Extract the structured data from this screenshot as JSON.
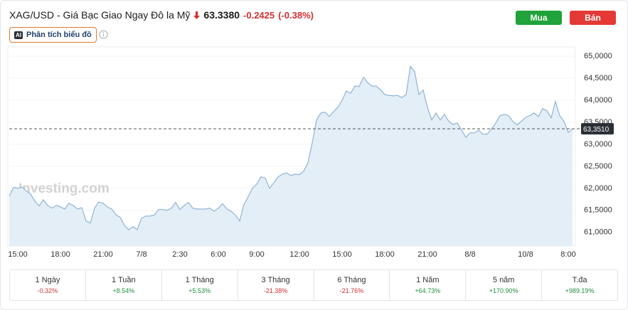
{
  "header": {
    "title": "XAG/USD - Giá Bạc Giao Ngay Đô la Mỹ",
    "price": "63.3380",
    "change": "-0.2425",
    "change_percent": "(-0.38%)",
    "buy": "Mua",
    "sell": "Bán",
    "ai_badge": "AI",
    "analysis": "Phân tích biểu đồ"
  },
  "chart_data": {
    "type": "area",
    "color": "#8fb4d6",
    "fill": "#e4eef7",
    "watermark": "Investing.com",
    "categories": [
      null,
      null,
      "15:00",
      null,
      null,
      null,
      null,
      null,
      null,
      null,
      null,
      null,
      "18:00",
      null,
      null,
      null,
      null,
      null,
      null,
      null,
      null,
      null,
      "21:00",
      null,
      null,
      null,
      null,
      null,
      null,
      null,
      null,
      "7/8",
      null,
      null,
      null,
      null,
      null,
      null,
      null,
      null,
      "2:30",
      null,
      null,
      null,
      null,
      null,
      null,
      null,
      null,
      "6:00",
      null,
      null,
      null,
      null,
      null,
      null,
      null,
      null,
      "9:00",
      null,
      null,
      null,
      null,
      null,
      null,
      null,
      null,
      null,
      "12:00",
      null,
      null,
      null,
      null,
      null,
      null,
      null,
      null,
      null,
      "15:00",
      null,
      null,
      null,
      null,
      null,
      null,
      null,
      null,
      null,
      "18:00",
      null,
      null,
      null,
      null,
      null,
      null,
      null,
      null,
      null,
      "21:00",
      null,
      null,
      null,
      null,
      null,
      null,
      null,
      null,
      null,
      "8/8",
      null,
      null,
      null,
      null,
      null,
      null,
      null,
      null,
      null,
      null,
      null,
      null,
      "10/8",
      null,
      null,
      null,
      null,
      null,
      null,
      null,
      null,
      null,
      "8:00",
      null
    ],
    "values": [
      61.82,
      62.02,
      62.0,
      62.03,
      61.94,
      61.87,
      61.71,
      61.6,
      61.74,
      61.61,
      61.55,
      61.61,
      61.58,
      61.53,
      61.66,
      61.61,
      61.53,
      61.56,
      61.26,
      61.21,
      61.55,
      61.69,
      61.66,
      61.58,
      61.53,
      61.4,
      61.34,
      61.16,
      61.06,
      61.13,
      61.06,
      61.32,
      61.37,
      61.37,
      61.39,
      61.52,
      61.52,
      61.5,
      61.55,
      61.68,
      61.52,
      61.61,
      61.68,
      61.55,
      61.53,
      61.53,
      61.53,
      61.55,
      61.48,
      61.55,
      61.65,
      61.53,
      61.48,
      61.39,
      61.26,
      61.63,
      61.81,
      62.0,
      62.1,
      62.26,
      62.23,
      62.0,
      62.13,
      62.26,
      62.32,
      62.35,
      62.29,
      62.32,
      62.31,
      62.39,
      62.58,
      63.03,
      63.55,
      63.71,
      63.73,
      63.63,
      63.74,
      63.84,
      64.0,
      64.21,
      64.16,
      64.32,
      64.31,
      64.52,
      64.4,
      64.32,
      64.32,
      64.24,
      64.13,
      64.11,
      64.1,
      64.11,
      64.06,
      64.13,
      64.77,
      64.65,
      64.13,
      64.23,
      63.84,
      63.55,
      63.71,
      63.55,
      63.68,
      63.52,
      63.45,
      63.48,
      63.32,
      63.16,
      63.26,
      63.26,
      63.32,
      63.23,
      63.23,
      63.35,
      63.48,
      63.65,
      63.68,
      63.65,
      63.52,
      63.44,
      63.52,
      63.61,
      63.65,
      63.71,
      63.63,
      63.81,
      63.76,
      63.6,
      63.97,
      63.65,
      63.52,
      63.27,
      63.35
    ],
    "ylim": [
      60.69,
      65.21
    ],
    "yticks": [
      {
        "value": 61,
        "label": "61,0000"
      },
      {
        "value": 61.5,
        "label": "61,5000"
      },
      {
        "value": 62,
        "label": "62,0000"
      },
      {
        "value": 62.5,
        "label": "62,5000"
      },
      {
        "value": 63,
        "label": "63,0000"
      },
      {
        "value": 63.5,
        "label": "63,5000"
      },
      {
        "value": 64,
        "label": "64,0000"
      },
      {
        "value": 64.5,
        "label": "64,5000"
      },
      {
        "value": 65,
        "label": "65,0000"
      }
    ],
    "current_price": {
      "value": 63.351,
      "label": "63,3510"
    }
  },
  "performance": [
    {
      "period": "1 Ngày",
      "change": "-0.32%"
    },
    {
      "period": "1 Tuần",
      "change": "+8.54%"
    },
    {
      "period": "1 Tháng",
      "change": "+5.53%"
    },
    {
      "period": "3 Tháng",
      "change": "-21.38%"
    },
    {
      "period": "6 Tháng",
      "change": "-21.76%"
    },
    {
      "period": "1 Năm",
      "change": "+64.73%"
    },
    {
      "period": "5 năm",
      "change": "+170.90%"
    },
    {
      "period": "T.đa",
      "change": "+989.19%"
    }
  ]
}
